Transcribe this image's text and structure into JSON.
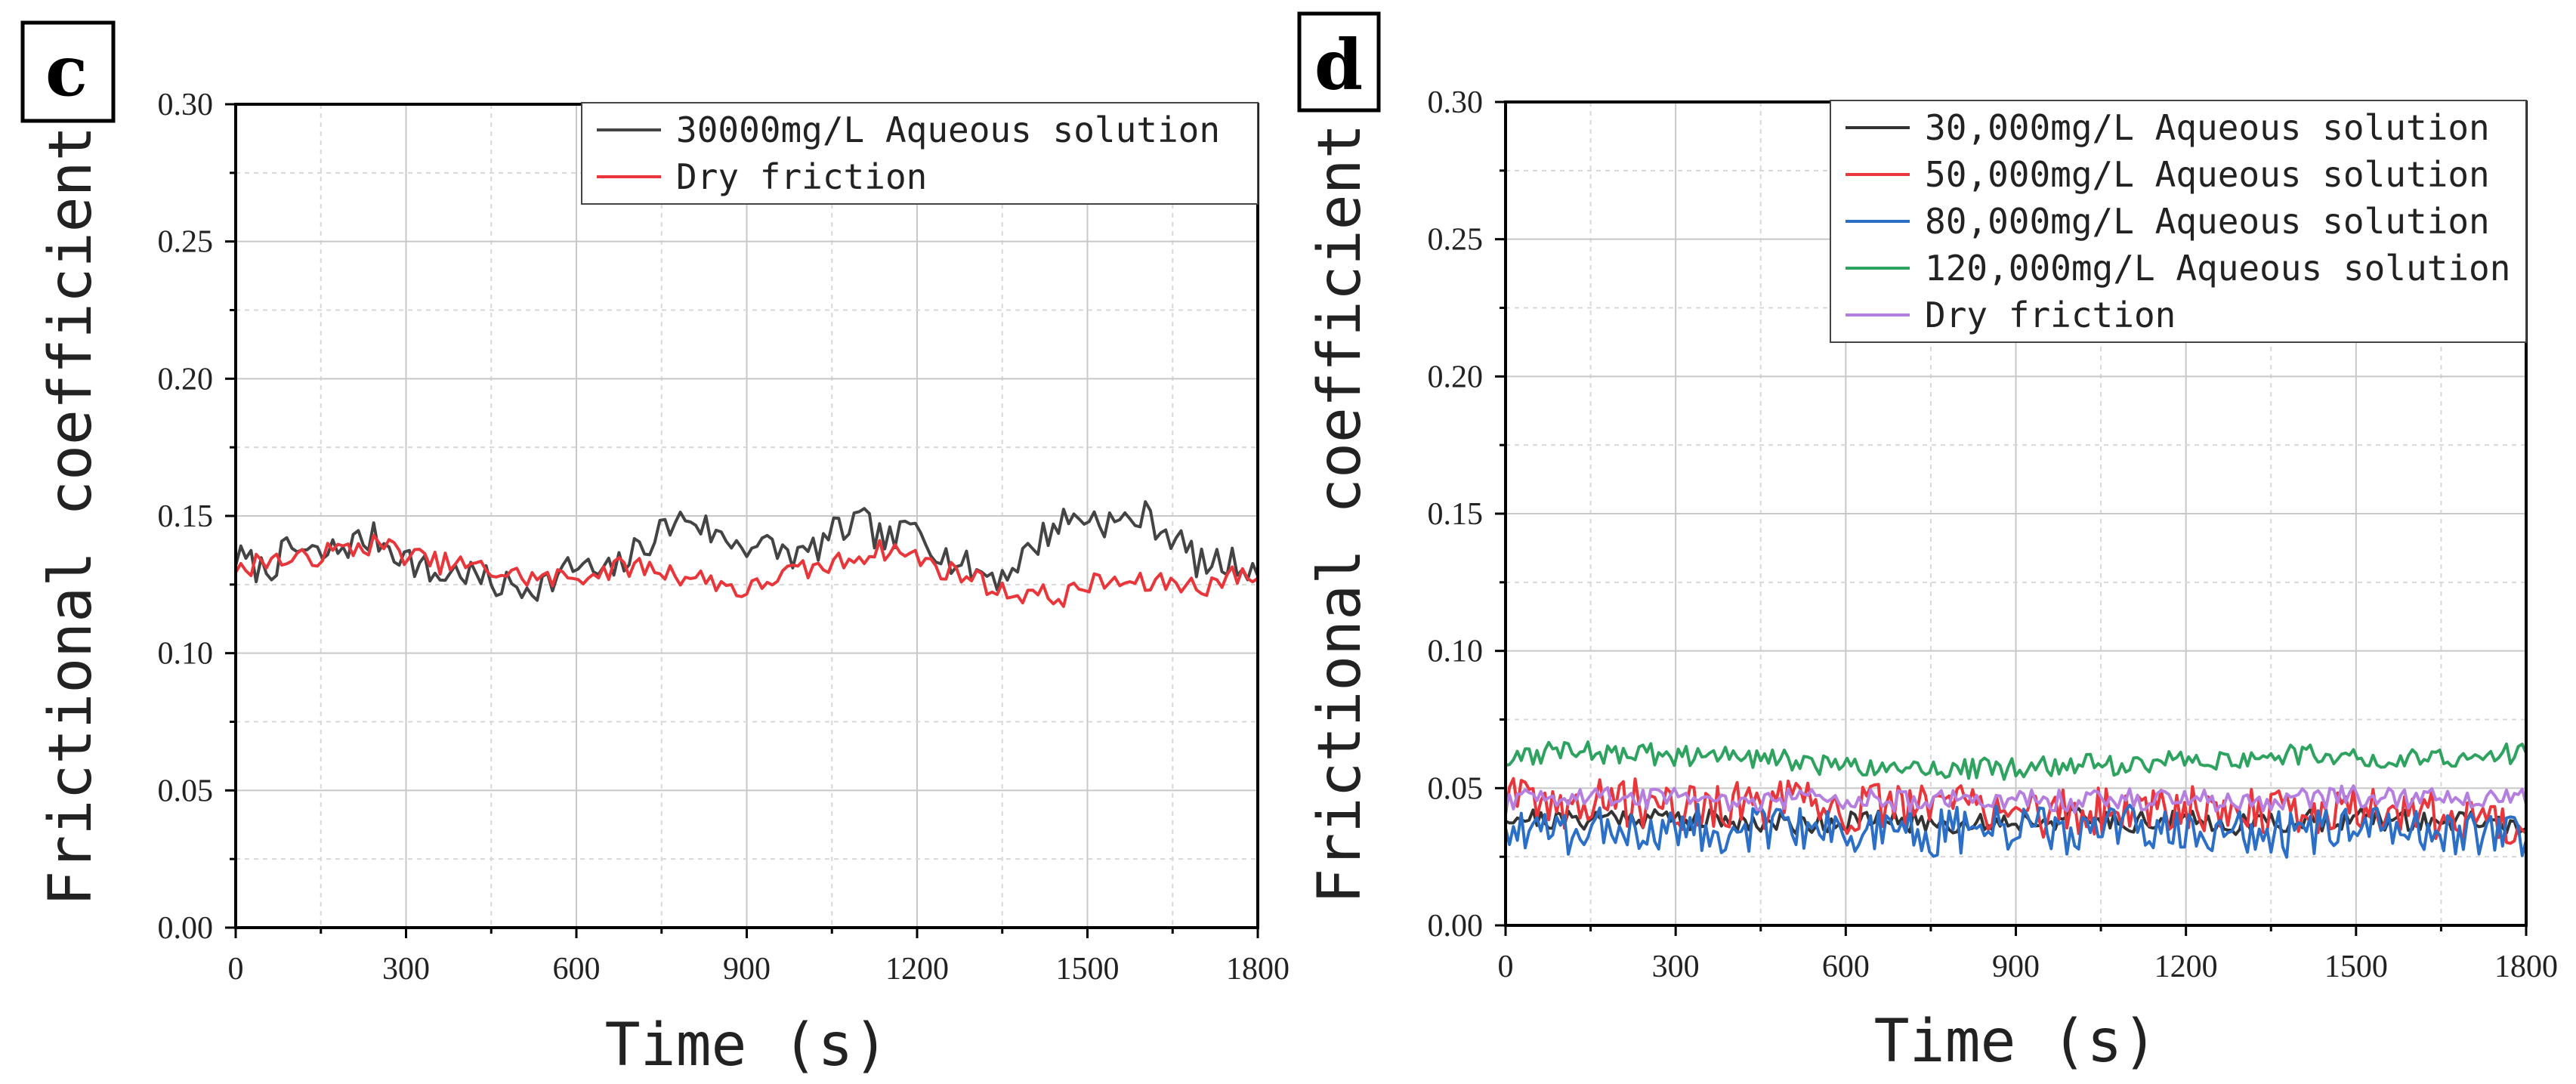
{
  "chart_data": [
    {
      "panel": "c",
      "type": "line",
      "title": "",
      "xlabel": "Time (s)",
      "ylabel": "Frictional coefficient",
      "xlim": [
        0,
        1800
      ],
      "ylim": [
        0,
        0.3
      ],
      "xticks": [
        0,
        300,
        600,
        900,
        1200,
        1500,
        1800
      ],
      "xtick_labels": [
        "0",
        "300",
        "600",
        "900",
        "1200",
        "1500",
        "1800"
      ],
      "yticks": [
        0,
        0.05,
        0.1,
        0.15,
        0.2,
        0.25,
        0.3
      ],
      "ytick_labels": [
        "0.00",
        "0.05",
        "0.10",
        "0.15",
        "0.20",
        "0.25",
        "0.30"
      ],
      "grid": true,
      "legend_position": "top-right",
      "series": [
        {
          "name": "30000mg/L Aqueous solution",
          "color": "#444444",
          "x": [
            0,
            50,
            100,
            150,
            200,
            250,
            300,
            350,
            400,
            450,
            500,
            550,
            600,
            650,
            700,
            750,
            800,
            850,
            900,
            950,
            1000,
            1050,
            1100,
            1150,
            1200,
            1250,
            1300,
            1350,
            1400,
            1450,
            1500,
            1550,
            1600,
            1650,
            1700,
            1750,
            1800
          ],
          "y": [
            0.135,
            0.13,
            0.138,
            0.135,
            0.14,
            0.142,
            0.135,
            0.128,
            0.13,
            0.125,
            0.124,
            0.126,
            0.132,
            0.128,
            0.136,
            0.145,
            0.15,
            0.142,
            0.14,
            0.138,
            0.135,
            0.143,
            0.148,
            0.14,
            0.147,
            0.135,
            0.13,
            0.128,
            0.138,
            0.148,
            0.15,
            0.147,
            0.15,
            0.143,
            0.132,
            0.133,
            0.132
          ],
          "noise": 0.006
        },
        {
          "name": "Dry friction",
          "color": "#e8363a",
          "x": [
            0,
            50,
            100,
            150,
            200,
            250,
            300,
            350,
            400,
            450,
            500,
            550,
            600,
            650,
            700,
            750,
            800,
            850,
            900,
            950,
            1000,
            1050,
            1100,
            1150,
            1200,
            1250,
            1300,
            1350,
            1400,
            1450,
            1500,
            1550,
            1600,
            1650,
            1700,
            1750,
            1800
          ],
          "y": [
            0.128,
            0.135,
            0.133,
            0.136,
            0.138,
            0.14,
            0.136,
            0.133,
            0.132,
            0.13,
            0.128,
            0.127,
            0.128,
            0.13,
            0.132,
            0.13,
            0.128,
            0.126,
            0.122,
            0.128,
            0.13,
            0.132,
            0.136,
            0.138,
            0.135,
            0.13,
            0.128,
            0.122,
            0.122,
            0.12,
            0.125,
            0.126,
            0.125,
            0.126,
            0.124,
            0.128,
            0.128
          ],
          "noise": 0.004
        }
      ]
    },
    {
      "panel": "d",
      "type": "line",
      "title": "",
      "xlabel": "Time (s)",
      "ylabel": "Frictional coefficient",
      "xlim": [
        0,
        1800
      ],
      "ylim": [
        0,
        0.3
      ],
      "xticks": [
        0,
        300,
        600,
        900,
        1200,
        1500,
        1800
      ],
      "xtick_labels": [
        "0",
        "300",
        "600",
        "900",
        "1200",
        "1500",
        "1800"
      ],
      "yticks": [
        0,
        0.05,
        0.1,
        0.15,
        0.2,
        0.25,
        0.3
      ],
      "ytick_labels": [
        "0.00",
        "0.05",
        "0.10",
        "0.15",
        "0.20",
        "0.25",
        "0.30"
      ],
      "grid": true,
      "legend_position": "top-right",
      "series": [
        {
          "name": "30,000mg/L Aqueous solution",
          "color": "#333333",
          "x": [
            0,
            100,
            200,
            300,
            400,
            500,
            600,
            700,
            800,
            900,
            1000,
            1100,
            1200,
            1300,
            1400,
            1500,
            1600,
            1700,
            1800
          ],
          "y": [
            0.04,
            0.038,
            0.04,
            0.039,
            0.038,
            0.037,
            0.038,
            0.038,
            0.037,
            0.038,
            0.039,
            0.038,
            0.038,
            0.037,
            0.038,
            0.039,
            0.038,
            0.038,
            0.036
          ],
          "noise": 0.004
        },
        {
          "name": "50,000mg/L Aqueous solution",
          "color": "#e8363a",
          "x": [
            0,
            100,
            200,
            300,
            400,
            500,
            600,
            700,
            800,
            900,
            1000,
            1100,
            1200,
            1300,
            1400,
            1500,
            1600,
            1700,
            1800
          ],
          "y": [
            0.045,
            0.044,
            0.045,
            0.044,
            0.043,
            0.044,
            0.042,
            0.043,
            0.045,
            0.042,
            0.04,
            0.043,
            0.044,
            0.042,
            0.04,
            0.043,
            0.042,
            0.038,
            0.038
          ],
          "noise": 0.009
        },
        {
          "name": "80,000mg/L Aqueous solution",
          "color": "#2c6fc7",
          "x": [
            0,
            100,
            200,
            300,
            400,
            500,
            600,
            700,
            800,
            900,
            1000,
            1100,
            1200,
            1300,
            1400,
            1500,
            1600,
            1700,
            1800
          ],
          "y": [
            0.036,
            0.034,
            0.035,
            0.036,
            0.035,
            0.034,
            0.035,
            0.034,
            0.034,
            0.035,
            0.034,
            0.035,
            0.034,
            0.034,
            0.033,
            0.034,
            0.034,
            0.035,
            0.034
          ],
          "noise": 0.009
        },
        {
          "name": "120,000mg/L Aqueous solution",
          "color": "#2ea360",
          "x": [
            0,
            100,
            200,
            300,
            400,
            500,
            600,
            700,
            800,
            900,
            1000,
            1100,
            1200,
            1300,
            1400,
            1500,
            1600,
            1700,
            1800
          ],
          "y": [
            0.062,
            0.063,
            0.063,
            0.062,
            0.061,
            0.06,
            0.058,
            0.058,
            0.057,
            0.057,
            0.058,
            0.059,
            0.06,
            0.061,
            0.062,
            0.061,
            0.062,
            0.061,
            0.063
          ],
          "noise": 0.004
        },
        {
          "name": "Dry friction",
          "color": "#b57fe0",
          "x": [
            0,
            100,
            200,
            300,
            400,
            500,
            600,
            700,
            800,
            900,
            1000,
            1100,
            1200,
            1300,
            1400,
            1500,
            1600,
            1700,
            1800
          ],
          "y": [
            0.045,
            0.047,
            0.046,
            0.046,
            0.045,
            0.046,
            0.046,
            0.045,
            0.046,
            0.046,
            0.045,
            0.046,
            0.046,
            0.045,
            0.046,
            0.047,
            0.046,
            0.047,
            0.047
          ],
          "noise": 0.004
        }
      ]
    }
  ]
}
